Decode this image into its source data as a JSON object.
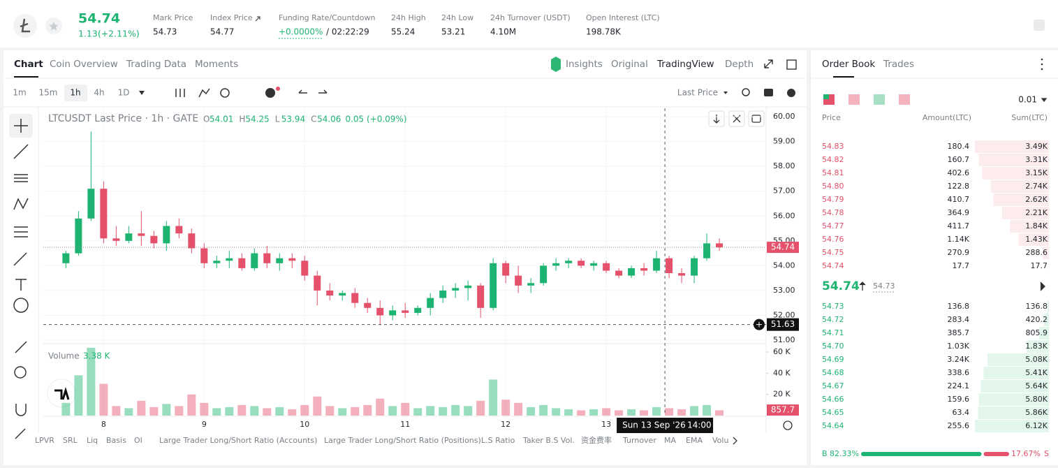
{
  "header": {
    "price": "54.74",
    "change": "1.13(+2.11%)",
    "stats": [
      {
        "label": "Mark Price",
        "value": "54.73"
      },
      {
        "label": "Index Price",
        "value": "54.77"
      },
      {
        "label": "Funding Rate/Countdown",
        "value": "+0.0000%",
        "extra": "/ 02:22:29"
      },
      {
        "label": "24h High",
        "value": "55.24"
      },
      {
        "label": "24h Low",
        "value": "53.21"
      },
      {
        "label": "24h Turnover (USDT)",
        "value": "4.10M"
      },
      {
        "label": "Open Interest (LTC)",
        "value": "198.78K"
      }
    ]
  },
  "tabs": [
    "Chart",
    "Coin Overview",
    "Trading Data",
    "Moments"
  ],
  "view_tabs": [
    "Insights",
    "Original",
    "TradingView",
    "Depth"
  ],
  "intervals": [
    "1m",
    "15m",
    "1h",
    "4h",
    "1D"
  ],
  "price_type": "Last Price",
  "indicators": [
    "LPVR",
    "SRL",
    "Liq",
    "Basis",
    "OI",
    "Large Trader Long/Short Ratio (Accounts)",
    "Large Trader Long/Short Ratio (Positions)",
    "L.S Ratio",
    "Taker B.S Vol.",
    "资金费率",
    "Turnover",
    "MA",
    "EMA",
    "Volu"
  ],
  "chart_data": {
    "type": "candlestick",
    "title": "LTCUSDT Last Price · 1h · GATE",
    "ohlc_legend": [
      {
        "tag": "O",
        "value": "54.01"
      },
      {
        "tag": "H",
        "value": "54.25"
      },
      {
        "tag": "L",
        "value": "53.94"
      },
      {
        "tag": "C",
        "value": "54.06"
      }
    ],
    "legend_change": "0.05 (+0.09%)",
    "x": [
      7.625,
      7.75,
      7.875,
      8,
      8.125,
      8.25,
      8.375,
      8.5,
      8.625,
      8.75,
      8.875,
      9,
      9.125,
      9.25,
      9.375,
      9.5,
      9.625,
      9.75,
      9.875,
      10,
      10.125,
      10.25,
      10.375,
      10.5,
      10.625,
      10.75,
      10.875,
      11,
      11.125,
      11.25,
      11.375,
      11.5,
      11.625,
      11.75,
      11.875,
      12,
      12.125,
      12.25,
      12.375,
      12.5,
      12.625,
      12.75,
      12.875,
      13,
      13.125,
      13.25,
      13.375,
      13.5,
      13.625,
      13.75,
      13.875,
      14,
      14.125
    ],
    "open": [
      54.1,
      54.5,
      55.9,
      57.1,
      55.1,
      55.0,
      55.3,
      55.2,
      54.9,
      55.6,
      55.3,
      54.7,
      54.1,
      54.2,
      54.3,
      53.9,
      54.5,
      54.1,
      54.3,
      54.2,
      53.6,
      53.0,
      52.8,
      52.9,
      52.5,
      52.3,
      52.0,
      52.2,
      52.1,
      52.3,
      52.7,
      53.0,
      53.1,
      53.2,
      52.3,
      54.1,
      53.6,
      53.2,
      53.3,
      54.0,
      54.1,
      54.2,
      54.0,
      54.1,
      53.8,
      53.6,
      53.9,
      53.8,
      54.3,
      53.7,
      53.6,
      54.3,
      54.9
    ],
    "high": [
      54.6,
      56.2,
      59.4,
      57.4,
      55.6,
      55.6,
      56.2,
      55.4,
      55.8,
      55.9,
      55.5,
      54.9,
      54.4,
      54.6,
      54.5,
      54.7,
      54.8,
      54.5,
      54.5,
      54.4,
      53.8,
      53.3,
      53.0,
      53.1,
      52.7,
      52.6,
      52.4,
      52.5,
      52.4,
      52.9,
      53.2,
      53.3,
      53.4,
      53.3,
      54.3,
      54.2,
      54.0,
      53.5,
      54.1,
      54.3,
      54.3,
      54.3,
      54.2,
      54.2,
      53.9,
      54.0,
      54.1,
      54.6,
      54.4,
      53.9,
      54.4,
      55.3,
      55.1
    ],
    "low": [
      53.9,
      54.4,
      55.8,
      54.9,
      54.8,
      54.9,
      54.8,
      54.7,
      54.6,
      55.1,
      54.5,
      53.9,
      53.9,
      53.9,
      53.8,
      53.8,
      53.9,
      53.8,
      53.9,
      53.4,
      52.4,
      52.6,
      52.6,
      52.3,
      52.1,
      51.6,
      51.8,
      51.9,
      52.0,
      52.0,
      52.5,
      52.7,
      52.6,
      51.9,
      52.2,
      53.3,
      52.9,
      52.9,
      53.2,
      53.8,
      53.9,
      53.9,
      53.8,
      53.7,
      53.5,
      53.5,
      53.6,
      53.7,
      53.5,
      53.3,
      53.3,
      54.2,
      54.6
    ],
    "close": [
      54.5,
      55.9,
      57.1,
      55.1,
      55.0,
      55.3,
      55.2,
      54.9,
      55.6,
      55.3,
      54.7,
      54.1,
      54.2,
      54.3,
      53.9,
      54.5,
      54.1,
      54.3,
      54.2,
      53.6,
      53.0,
      52.8,
      52.9,
      52.5,
      52.3,
      52.0,
      52.2,
      52.1,
      52.3,
      52.7,
      53.0,
      53.1,
      53.2,
      52.3,
      54.1,
      53.6,
      53.2,
      53.3,
      54.0,
      54.1,
      54.2,
      54.0,
      54.1,
      53.8,
      53.6,
      53.9,
      53.8,
      54.3,
      53.7,
      53.6,
      54.3,
      54.9,
      54.74
    ],
    "volume": [
      12000,
      38000,
      64000,
      30000,
      9000,
      7000,
      14000,
      8000,
      11000,
      9000,
      20000,
      12000,
      7000,
      8000,
      10000,
      9000,
      7000,
      8000,
      6000,
      10000,
      18000,
      9000,
      7000,
      8000,
      10000,
      16000,
      9000,
      12000,
      7000,
      9000,
      8000,
      10000,
      9000,
      14000,
      34000,
      15000,
      12000,
      8000,
      10000,
      7000,
      6000,
      5000,
      6000,
      7000,
      5000,
      6000,
      5000,
      8000,
      7000,
      6000,
      9000,
      10000,
      5000
    ],
    "xlim": [
      7.4,
      14.59
    ],
    "xticks": [
      8,
      9,
      10,
      11,
      12,
      13
    ],
    "ylim": [
      50.86,
      60.34
    ],
    "yticks": [
      {
        "value": 51,
        "label": "51.00"
      },
      {
        "value": 52,
        "label": "52.00"
      },
      {
        "value": 53,
        "label": "53.00"
      },
      {
        "value": 54,
        "label": "54.00"
      },
      {
        "value": 55,
        "label": "55.00"
      },
      {
        "value": 56,
        "label": "56.00"
      },
      {
        "value": 57,
        "label": "57.00"
      },
      {
        "value": 58,
        "label": "58.00"
      },
      {
        "value": 59,
        "label": "59.00"
      },
      {
        "value": 60,
        "label": "60.00"
      }
    ],
    "volume_title": "Volume",
    "volume_label": "3.38 K",
    "volume_last": "857.7",
    "volume_ylim": [
      0,
      65900
    ],
    "volume_yticks": [
      {
        "value": 20000,
        "label": "20 K"
      },
      {
        "value": 40000,
        "label": "40 K"
      },
      {
        "value": 60000,
        "label": "60 K"
      }
    ],
    "last_price": 54.74,
    "crosshair_price": 51.63,
    "crosshair_x": 13.5833,
    "crosshair_time": "Sun 13 Sep '26",
    "crosshair_hour": "14:00",
    "up_color": "#1db371",
    "down_color": "#e5506a",
    "grid": true
  },
  "order_book": {
    "tabs": [
      "Order Book",
      "Trades"
    ],
    "precision": "0.01",
    "columns": [
      "Price",
      "Amount(LTC)",
      "Sum(LTC)"
    ],
    "asks": [
      [
        "54.83",
        "180.4",
        "3.49K"
      ],
      [
        "54.82",
        "160.7",
        "3.31K"
      ],
      [
        "54.81",
        "402.6",
        "3.15K"
      ],
      [
        "54.80",
        "122.8",
        "2.74K"
      ],
      [
        "54.79",
        "410.7",
        "2.62K"
      ],
      [
        "54.78",
        "364.9",
        "2.21K"
      ],
      [
        "54.77",
        "411.7",
        "1.84K"
      ],
      [
        "54.76",
        "1.14K",
        "1.43K"
      ],
      [
        "54.75",
        "270.9",
        "288.6"
      ],
      [
        "54.74",
        "17.7",
        "17.7"
      ]
    ],
    "last_price": "54.74",
    "mark_price": "54.73",
    "bids": [
      [
        "54.73",
        "136.8",
        "136.8"
      ],
      [
        "54.72",
        "283.4",
        "420.2"
      ],
      [
        "54.71",
        "385.7",
        "805.9"
      ],
      [
        "54.70",
        "1.03K",
        "1.83K"
      ],
      [
        "54.69",
        "3.24K",
        "5.08K"
      ],
      [
        "54.68",
        "338.6",
        "5.41K"
      ],
      [
        "54.67",
        "224.1",
        "5.64K"
      ],
      [
        "54.66",
        "159.6",
        "5.80K"
      ],
      [
        "54.65",
        "63.4",
        "5.86K"
      ],
      [
        "54.64",
        "255.6",
        "6.12K"
      ]
    ],
    "ratio": {
      "buy_tag": "B",
      "buy": "82.33%",
      "sell": "17.67%",
      "sell_tag": "S"
    }
  }
}
